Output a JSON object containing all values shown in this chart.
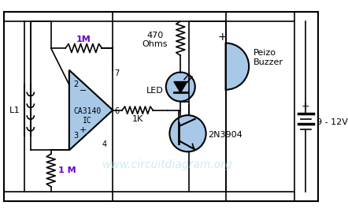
{
  "bg_color": "#ffffff",
  "blue_fill": "#a8c8e8",
  "opamp_label": "CA3140\nIC",
  "transistor_label": "2N3904",
  "resistor1_label": "1M",
  "resistor2_label": "1 M",
  "resistor3_label": "470\nOhms",
  "resistor4_label": "1K",
  "led_label": "LED",
  "buzzer_label": "Peizo\nBuzzer",
  "inductor_label": "L1",
  "battery_label": "9 - 12V",
  "watermark": "www.circuitdiagram.org",
  "pin2_label": "2",
  "pin3_label": "3",
  "pin4_label": "4",
  "pin6_label": "6",
  "pin7_label": "7",
  "plus_label": "+",
  "minus_label": "-",
  "figsize": [
    4.42,
    2.7
  ],
  "dpi": 100
}
